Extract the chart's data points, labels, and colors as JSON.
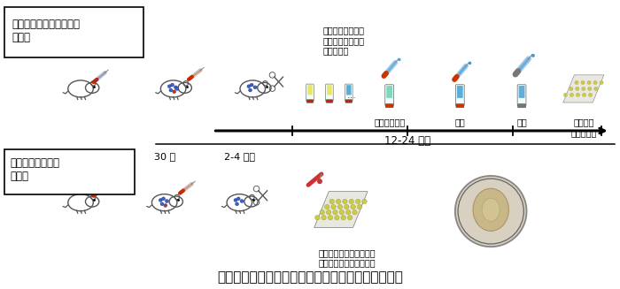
{
  "bg_color": "#ffffff",
  "fig_width": 7.0,
  "fig_height": 3.27,
  "dpi": 100,
  "title": "図２　血管透過性亢進の測定法（従来法との比較）",
  "title_fontsize": 11,
  "box1_label": "ダイレクトブルーによる\n定量法",
  "box2_label": "蛍光色素を用いた\n改良法",
  "arrow_label_top": "12-24 時間",
  "time1_label": "30 分",
  "time2_label": "2-4 時間",
  "note_top_right": "切り出した皮膚組\n織から有機溶媒で\n色素を抽出",
  "label_alkali": "アルカリ処理",
  "label_neutralize": "中和",
  "label_filter": "濾過",
  "label_absorbance": "抽出液の\n吸光度測定",
  "note_bottom": "切り出した皮膚組織をプ\nレート内で直接蛍光測定"
}
